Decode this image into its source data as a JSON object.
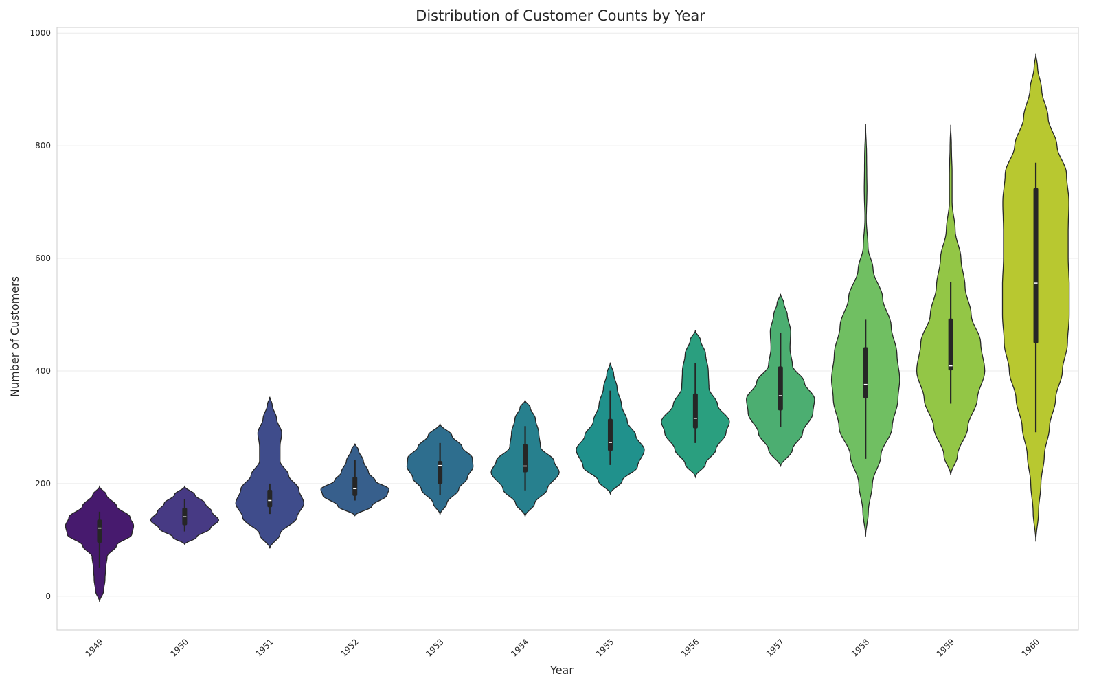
{
  "chart_data": {
    "type": "violin",
    "title": "Distribution of Customer Counts by Year",
    "xlabel": "Year",
    "ylabel": "Number of Customers",
    "ylim": [
      -60,
      1010
    ],
    "yticks": [
      0,
      200,
      400,
      600,
      800,
      1000
    ],
    "grid": true,
    "palette": [
      "#471a6e",
      "#473a84",
      "#3f4c8b",
      "#375f8c",
      "#2e6e8e",
      "#27808e",
      "#20918c",
      "#2a9f7f",
      "#4cae71",
      "#70bf62",
      "#93c646",
      "#b8c830"
    ],
    "categories": [
      "1949",
      "1950",
      "1951",
      "1952",
      "1953",
      "1954",
      "1955",
      "1956",
      "1957",
      "1958",
      "1959",
      "1960"
    ],
    "series": [
      {
        "min": 50,
        "q1": 95,
        "median": 121,
        "q3": 136,
        "max": 150,
        "kde_range": [
          -10,
          195
        ],
        "shape": [
          [
            -10,
            0.0
          ],
          [
            10,
            0.12
          ],
          [
            30,
            0.16
          ],
          [
            50,
            0.18
          ],
          [
            70,
            0.22
          ],
          [
            90,
            0.5
          ],
          [
            110,
            0.95
          ],
          [
            125,
            1.0
          ],
          [
            140,
            0.9
          ],
          [
            160,
            0.5
          ],
          [
            180,
            0.2
          ],
          [
            195,
            0.0
          ]
        ]
      },
      {
        "min": 115,
        "q1": 126,
        "median": 141,
        "q3": 157,
        "max": 172,
        "kde_range": [
          92,
          195
        ],
        "shape": [
          [
            92,
            0.0
          ],
          [
            105,
            0.35
          ],
          [
            120,
            0.75
          ],
          [
            135,
            1.0
          ],
          [
            150,
            0.8
          ],
          [
            165,
            0.6
          ],
          [
            180,
            0.3
          ],
          [
            195,
            0.0
          ]
        ]
      },
      {
        "min": 146,
        "q1": 158,
        "median": 170,
        "q3": 189,
        "max": 200,
        "kde_range": [
          85,
          354
        ],
        "shape": [
          [
            85,
            0.0
          ],
          [
            110,
            0.3
          ],
          [
            140,
            0.8
          ],
          [
            165,
            1.0
          ],
          [
            190,
            0.85
          ],
          [
            215,
            0.55
          ],
          [
            240,
            0.3
          ],
          [
            265,
            0.3
          ],
          [
            290,
            0.35
          ],
          [
            315,
            0.2
          ],
          [
            340,
            0.07
          ],
          [
            354,
            0.0
          ]
        ]
      },
      {
        "min": 170,
        "q1": 178,
        "median": 191,
        "q3": 212,
        "max": 242,
        "kde_range": [
          143,
          271
        ],
        "shape": [
          [
            143,
            0.0
          ],
          [
            160,
            0.5
          ],
          [
            180,
            0.95
          ],
          [
            190,
            1.0
          ],
          [
            205,
            0.6
          ],
          [
            220,
            0.4
          ],
          [
            240,
            0.25
          ],
          [
            260,
            0.1
          ],
          [
            271,
            0.0
          ]
        ]
      },
      {
        "min": 180,
        "q1": 199,
        "median": 232,
        "q3": 240,
        "max": 272,
        "kde_range": [
          145,
          306
        ],
        "shape": [
          [
            145,
            0.0
          ],
          [
            165,
            0.2
          ],
          [
            190,
            0.55
          ],
          [
            210,
            0.8
          ],
          [
            230,
            0.97
          ],
          [
            245,
            0.95
          ],
          [
            265,
            0.65
          ],
          [
            285,
            0.35
          ],
          [
            306,
            0.0
          ]
        ]
      },
      {
        "min": 188,
        "q1": 220,
        "median": 231,
        "q3": 270,
        "max": 302,
        "kde_range": [
          142,
          348
        ],
        "shape": [
          [
            142,
            0.0
          ],
          [
            165,
            0.28
          ],
          [
            190,
            0.65
          ],
          [
            220,
            1.0
          ],
          [
            240,
            0.85
          ],
          [
            265,
            0.45
          ],
          [
            290,
            0.4
          ],
          [
            315,
            0.3
          ],
          [
            335,
            0.15
          ],
          [
            348,
            0.0
          ]
        ]
      },
      {
        "min": 233,
        "q1": 258,
        "median": 273,
        "q3": 315,
        "max": 365,
        "kde_range": [
          182,
          415
        ],
        "shape": [
          [
            182,
            0.0
          ],
          [
            205,
            0.35
          ],
          [
            230,
            0.8
          ],
          [
            260,
            1.0
          ],
          [
            285,
            0.75
          ],
          [
            310,
            0.5
          ],
          [
            340,
            0.33
          ],
          [
            370,
            0.2
          ],
          [
            395,
            0.1
          ],
          [
            415,
            0.0
          ]
        ]
      },
      {
        "min": 272,
        "q1": 298,
        "median": 316,
        "q3": 360,
        "max": 414,
        "kde_range": [
          212,
          472
        ],
        "shape": [
          [
            212,
            0.0
          ],
          [
            235,
            0.3
          ],
          [
            260,
            0.6
          ],
          [
            290,
            0.9
          ],
          [
            310,
            1.0
          ],
          [
            340,
            0.65
          ],
          [
            370,
            0.4
          ],
          [
            400,
            0.38
          ],
          [
            430,
            0.3
          ],
          [
            455,
            0.15
          ],
          [
            472,
            0.0
          ]
        ]
      },
      {
        "min": 300,
        "q1": 330,
        "median": 356,
        "q3": 408,
        "max": 467,
        "kde_range": [
          230,
          537
        ],
        "shape": [
          [
            230,
            0.0
          ],
          [
            260,
            0.35
          ],
          [
            290,
            0.65
          ],
          [
            325,
            0.95
          ],
          [
            350,
            1.0
          ],
          [
            380,
            0.7
          ],
          [
            410,
            0.35
          ],
          [
            440,
            0.28
          ],
          [
            470,
            0.3
          ],
          [
            500,
            0.2
          ],
          [
            520,
            0.1
          ],
          [
            537,
            0.0
          ]
        ]
      },
      {
        "min": 244,
        "q1": 352,
        "median": 376,
        "q3": 442,
        "max": 491,
        "kde_range": [
          106,
          838
        ],
        "shape": [
          [
            106,
            0.0
          ],
          [
            150,
            0.08
          ],
          [
            200,
            0.2
          ],
          [
            250,
            0.45
          ],
          [
            300,
            0.78
          ],
          [
            350,
            0.95
          ],
          [
            385,
            1.0
          ],
          [
            430,
            0.92
          ],
          [
            480,
            0.75
          ],
          [
            530,
            0.5
          ],
          [
            580,
            0.22
          ],
          [
            620,
            0.07
          ],
          [
            670,
            0.02
          ],
          [
            720,
            0.04
          ],
          [
            780,
            0.03
          ],
          [
            838,
            0.0
          ]
        ]
      },
      {
        "min": 342,
        "q1": 401,
        "median": 409,
        "q3": 493,
        "max": 558,
        "kde_range": [
          215,
          837
        ],
        "shape": [
          [
            215,
            0.0
          ],
          [
            250,
            0.2
          ],
          [
            300,
            0.5
          ],
          [
            350,
            0.78
          ],
          [
            400,
            1.0
          ],
          [
            450,
            0.88
          ],
          [
            500,
            0.6
          ],
          [
            550,
            0.42
          ],
          [
            600,
            0.3
          ],
          [
            650,
            0.13
          ],
          [
            700,
            0.04
          ],
          [
            750,
            0.04
          ],
          [
            800,
            0.02
          ],
          [
            837,
            0.0
          ]
        ]
      },
      {
        "min": 291,
        "q1": 449,
        "median": 556,
        "q3": 725,
        "max": 770,
        "kde_range": [
          97,
          964
        ],
        "shape": [
          [
            97,
            0.0
          ],
          [
            150,
            0.08
          ],
          [
            200,
            0.15
          ],
          [
            250,
            0.25
          ],
          [
            300,
            0.4
          ],
          [
            350,
            0.58
          ],
          [
            400,
            0.78
          ],
          [
            450,
            0.93
          ],
          [
            500,
            0.98
          ],
          [
            550,
            0.98
          ],
          [
            600,
            0.95
          ],
          [
            650,
            0.95
          ],
          [
            700,
            0.97
          ],
          [
            750,
            0.9
          ],
          [
            800,
            0.62
          ],
          [
            850,
            0.36
          ],
          [
            900,
            0.17
          ],
          [
            940,
            0.05
          ],
          [
            964,
            0.0
          ]
        ]
      }
    ]
  }
}
